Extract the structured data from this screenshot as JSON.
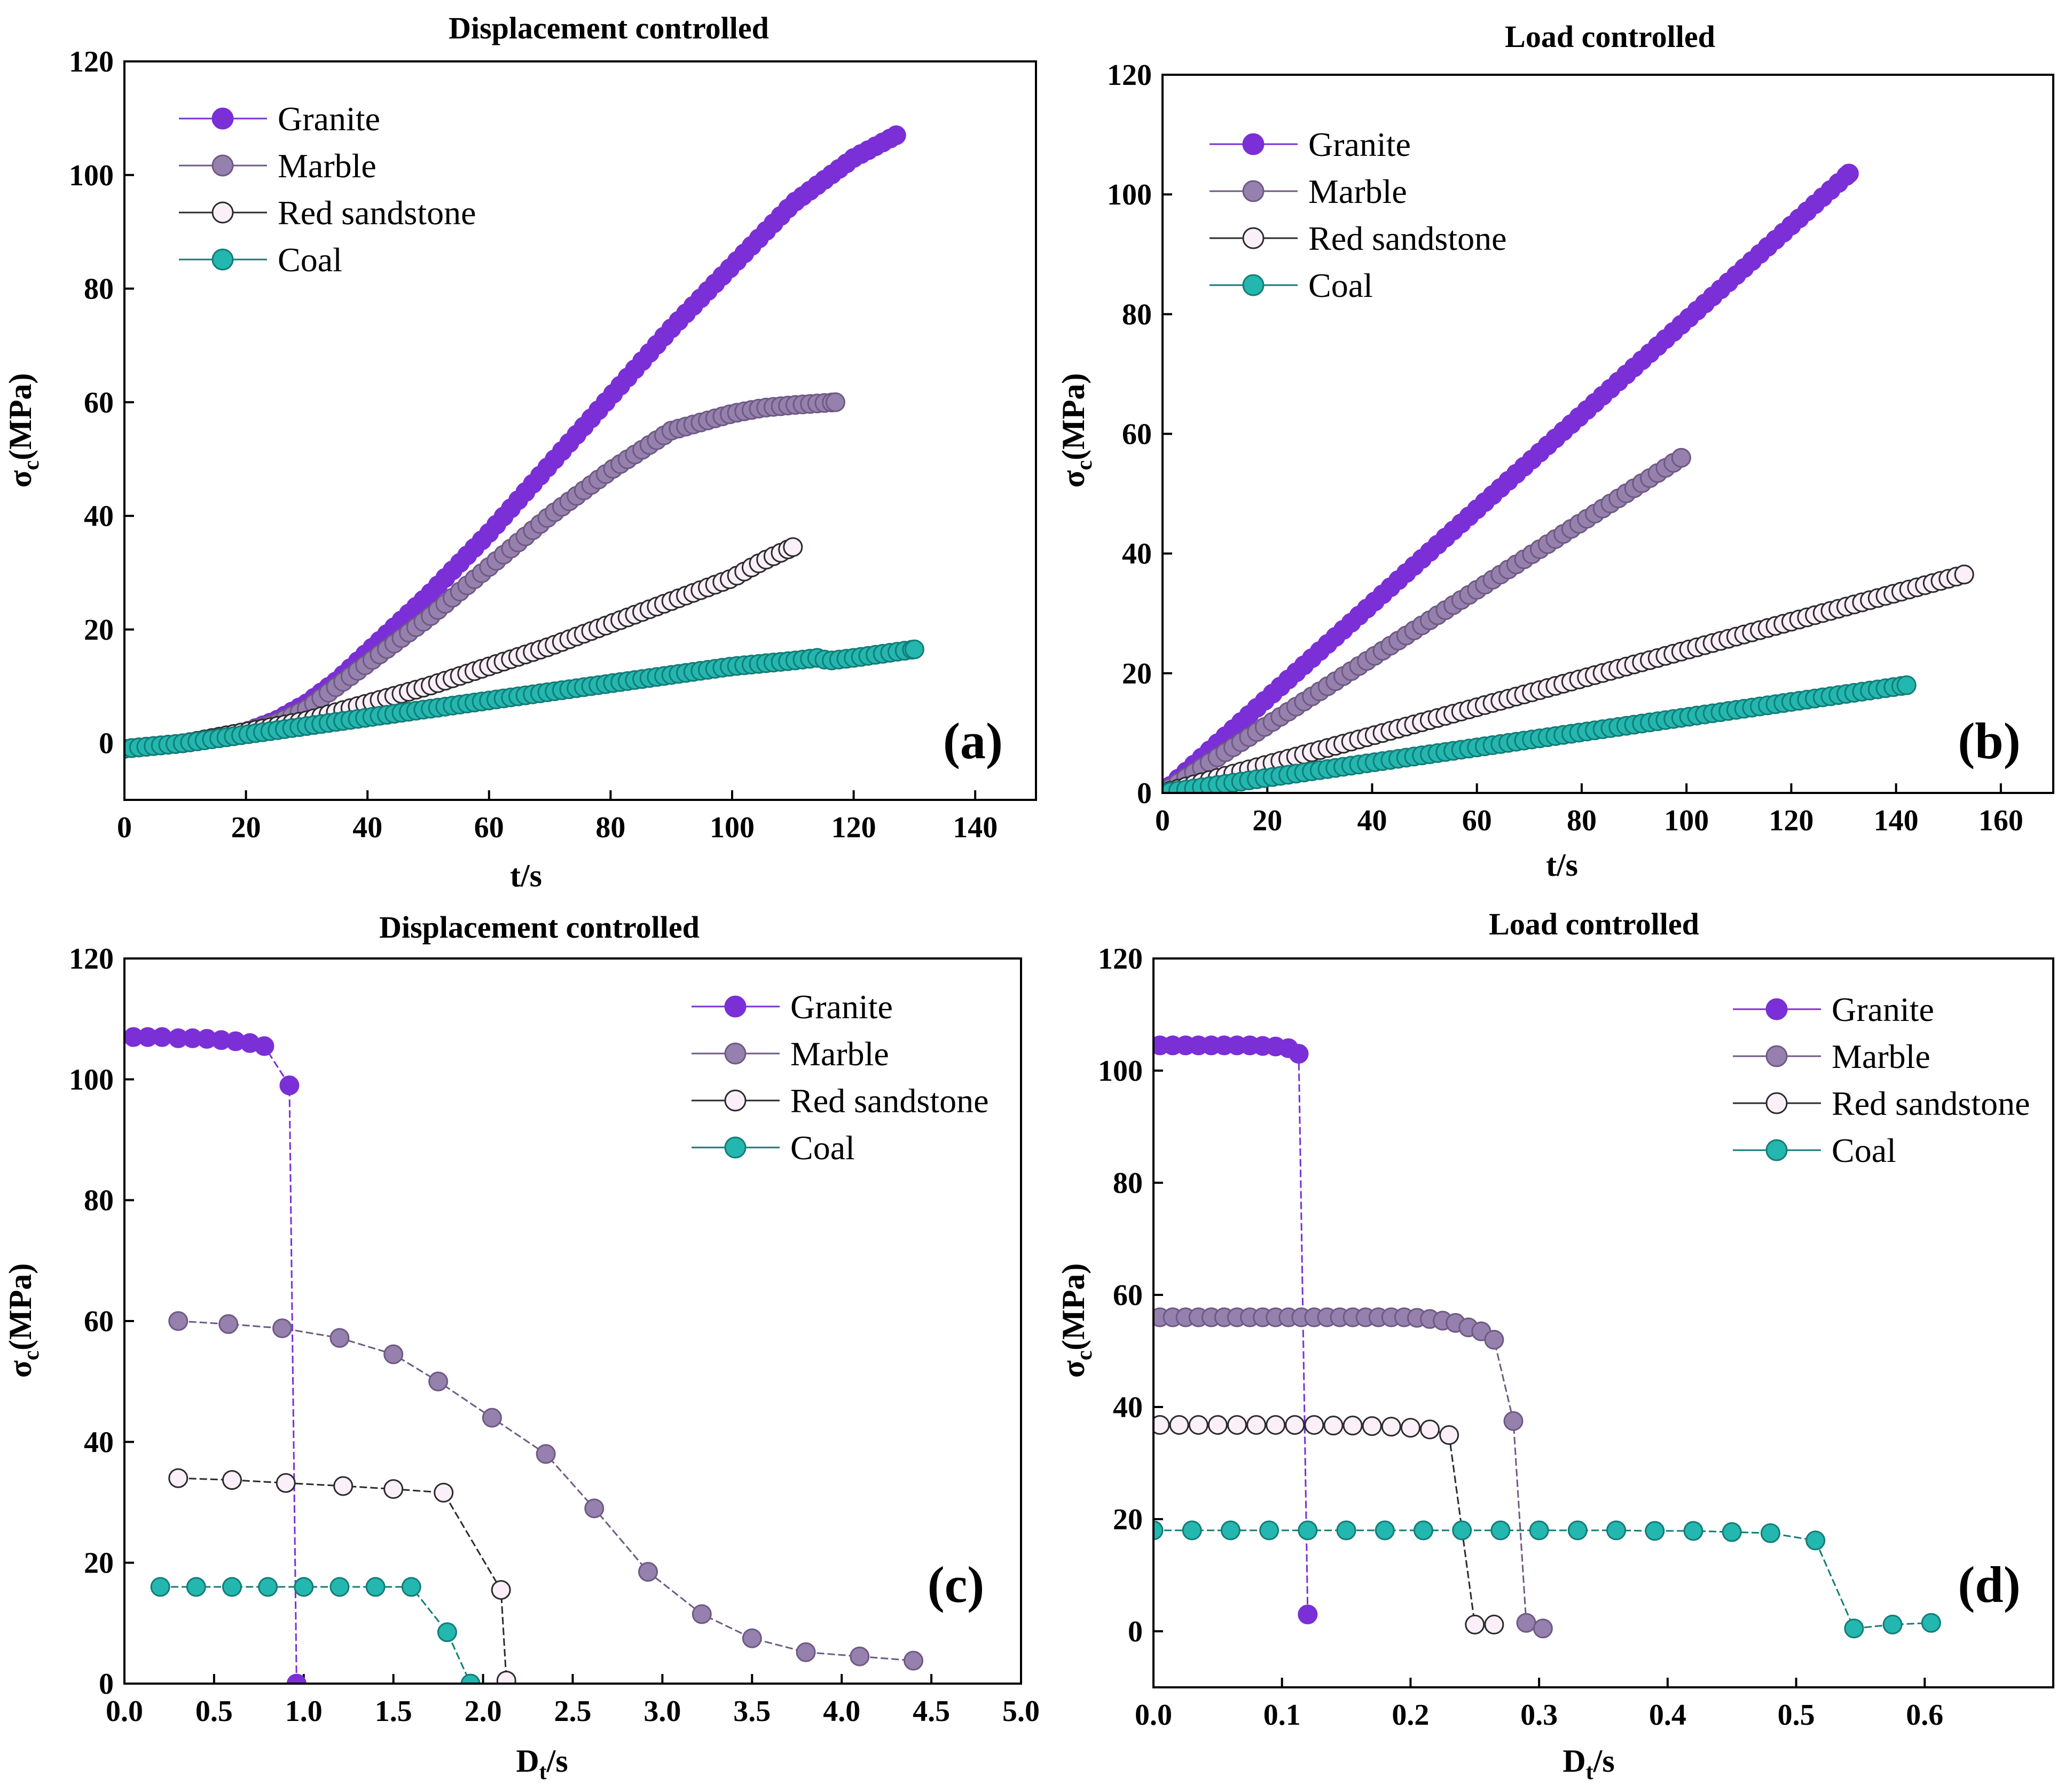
{
  "series_styles": {
    "Granite": {
      "color": "#7B2FD6",
      "fill": "#7B2FD6"
    },
    "Marble": {
      "color": "#6E5A84",
      "fill": "#9681AE"
    },
    "Red sandstone": {
      "color": "#2B2B2B",
      "fill": "#FBEFFA"
    },
    "Coal": {
      "color": "#137C77",
      "fill": "#23B7AF"
    }
  },
  "chart_data": [
    {
      "panel": "(a)",
      "type": "scatter",
      "title": "Displacement controlled",
      "xlabel": "t/s",
      "ylabel": "σc(MPa)",
      "xlim": [
        0,
        150
      ],
      "ylim": [
        -10,
        120
      ],
      "xticks": [
        0,
        20,
        40,
        60,
        80,
        100,
        120,
        140
      ],
      "yticks": [
        0,
        20,
        40,
        60,
        80,
        100,
        120
      ],
      "legend_position": "top-left",
      "legend": [
        "Granite",
        "Marble",
        "Red sandstone",
        "Coal"
      ],
      "series": [
        {
          "name": "Granite",
          "marker_step": 1.2,
          "x": [
            0,
            10,
            20,
            25,
            30,
            35,
            40,
            50,
            60,
            70,
            80,
            90,
            100,
            110,
            120,
            127
          ],
          "y": [
            -1,
            0,
            2,
            4,
            7,
            11,
            16,
            26,
            37,
            49,
            61,
            73,
            84,
            95,
            103,
            107
          ]
        },
        {
          "name": "Marble",
          "marker_step": 1.2,
          "x": [
            0,
            10,
            20,
            25,
            30,
            35,
            40,
            50,
            60,
            70,
            80,
            90,
            100,
            105,
            110,
            117
          ],
          "y": [
            -1,
            0,
            2,
            3.5,
            6,
            10,
            14,
            22,
            31,
            40,
            48,
            55,
            58,
            59,
            59.5,
            60
          ]
        },
        {
          "name": "Red sandstone",
          "marker_step": 1.2,
          "x": [
            0,
            10,
            20,
            30,
            40,
            50,
            60,
            70,
            80,
            90,
            100,
            105,
            110
          ],
          "y": [
            -1,
            0,
            2,
            4,
            7,
            10,
            13.5,
            17,
            21,
            25,
            29,
            32,
            34.5
          ]
        },
        {
          "name": "Coal",
          "marker_step": 1.2,
          "x": [
            0,
            10,
            20,
            30,
            40,
            50,
            60,
            70,
            80,
            90,
            100,
            110,
            114,
            116,
            120,
            130
          ],
          "y": [
            -1,
            0,
            1.5,
            3,
            4.5,
            6,
            7.5,
            9,
            10.5,
            12,
            13.5,
            14.5,
            15,
            14.5,
            15,
            16.5
          ]
        }
      ]
    },
    {
      "panel": "(b)",
      "type": "scatter",
      "title": "Load controlled",
      "xlabel": "t/s",
      "ylabel": "σc(MPa)",
      "xlim": [
        0,
        170
      ],
      "ylim": [
        0,
        120
      ],
      "xticks": [
        0,
        20,
        40,
        60,
        80,
        100,
        120,
        140,
        160
      ],
      "yticks": [
        0,
        20,
        40,
        60,
        80,
        100,
        120
      ],
      "legend_position": "top-left",
      "legend": [
        "Granite",
        "Marble",
        "Red sandstone",
        "Coal"
      ],
      "series": [
        {
          "name": "Granite",
          "marker_step": 1.5,
          "x": [
            0,
            131
          ],
          "y": [
            0,
            103.5
          ]
        },
        {
          "name": "Marble",
          "marker_step": 1.5,
          "x": [
            0,
            99
          ],
          "y": [
            0,
            56
          ]
        },
        {
          "name": "Red sandstone",
          "marker_step": 1.5,
          "x": [
            0,
            153
          ],
          "y": [
            0,
            36.5
          ]
        },
        {
          "name": "Coal",
          "marker_step": 1.5,
          "x": [
            0,
            142
          ],
          "y": [
            0,
            18
          ]
        }
      ]
    },
    {
      "panel": "(c)",
      "type": "scatter",
      "title": "Displacement controlled",
      "xlabel": "Dt/s",
      "ylabel": "σc(MPa)",
      "xlim": [
        0,
        5
      ],
      "ylim": [
        0,
        120
      ],
      "xticks": [
        "0.0",
        "0.5",
        "1.0",
        "1.5",
        "2.0",
        "2.5",
        "3.0",
        "3.5",
        "4.0",
        "4.5",
        "5.0"
      ],
      "yticks": [
        0,
        20,
        40,
        60,
        80,
        100,
        120
      ],
      "legend_position": "top-right",
      "legend": [
        "Granite",
        "Marble",
        "Red sandstone",
        "Coal"
      ],
      "series": [
        {
          "name": "Granite",
          "points": [
            [
              0.05,
              107
            ],
            [
              0.13,
              107
            ],
            [
              0.21,
              107
            ],
            [
              0.3,
              106.8
            ],
            [
              0.38,
              106.8
            ],
            [
              0.46,
              106.7
            ],
            [
              0.54,
              106.5
            ],
            [
              0.62,
              106.3
            ],
            [
              0.7,
              106
            ],
            [
              0.78,
              105.5
            ],
            [
              0.92,
              99
            ],
            [
              0.96,
              0
            ]
          ]
        },
        {
          "name": "Marble",
          "points": [
            [
              0.3,
              60
            ],
            [
              0.58,
              59.5
            ],
            [
              0.88,
              58.8
            ],
            [
              1.2,
              57.2
            ],
            [
              1.5,
              54.5
            ],
            [
              1.75,
              50
            ],
            [
              2.05,
              44
            ],
            [
              2.35,
              38
            ],
            [
              2.62,
              29
            ],
            [
              2.92,
              18.5
            ],
            [
              3.22,
              11.5
            ],
            [
              3.5,
              7.5
            ],
            [
              3.8,
              5.2
            ],
            [
              4.1,
              4.5
            ],
            [
              4.4,
              3.8
            ]
          ]
        },
        {
          "name": "Red sandstone",
          "points": [
            [
              0.3,
              34
            ],
            [
              0.6,
              33.7
            ],
            [
              0.9,
              33.2
            ],
            [
              1.22,
              32.7
            ],
            [
              1.5,
              32.2
            ],
            [
              1.78,
              31.6
            ],
            [
              2.1,
              15.5
            ],
            [
              2.13,
              0.5
            ]
          ]
        },
        {
          "name": "Coal",
          "points": [
            [
              0.2,
              16
            ],
            [
              0.4,
              16
            ],
            [
              0.6,
              16
            ],
            [
              0.8,
              16
            ],
            [
              1.0,
              16
            ],
            [
              1.2,
              16
            ],
            [
              1.4,
              16
            ],
            [
              1.6,
              16
            ],
            [
              1.8,
              8.5
            ],
            [
              1.93,
              0
            ]
          ]
        }
      ]
    },
    {
      "panel": "(d)",
      "type": "scatter",
      "title": "Load controlled",
      "xlabel": "Dt/s",
      "ylabel": "σc(MPa)",
      "xlim": [
        0,
        0.7
      ],
      "ylim": [
        -10,
        120
      ],
      "xticks": [
        "0.0",
        "0.1",
        "0.2",
        "0.3",
        "0.4",
        "0.5",
        "0.6"
      ],
      "yticks": [
        0,
        20,
        40,
        60,
        80,
        100,
        120
      ],
      "legend_position": "top-right",
      "legend": [
        "Granite",
        "Marble",
        "Red sandstone",
        "Coal"
      ],
      "series": [
        {
          "name": "Granite",
          "points": [
            [
              0.005,
              104.5
            ],
            [
              0.015,
              104.5
            ],
            [
              0.025,
              104.5
            ],
            [
              0.035,
              104.5
            ],
            [
              0.045,
              104.5
            ],
            [
              0.055,
              104.5
            ],
            [
              0.065,
              104.5
            ],
            [
              0.075,
              104.5
            ],
            [
              0.085,
              104.4
            ],
            [
              0.095,
              104.3
            ],
            [
              0.105,
              104
            ],
            [
              0.113,
              103
            ],
            [
              0.12,
              3
            ]
          ]
        },
        {
          "name": "Marble",
          "points": [
            [
              0.005,
              56
            ],
            [
              0.015,
              56
            ],
            [
              0.025,
              56
            ],
            [
              0.035,
              56
            ],
            [
              0.045,
              56
            ],
            [
              0.055,
              56
            ],
            [
              0.065,
              56
            ],
            [
              0.075,
              56
            ],
            [
              0.085,
              56
            ],
            [
              0.095,
              56
            ],
            [
              0.105,
              56
            ],
            [
              0.115,
              56
            ],
            [
              0.125,
              56
            ],
            [
              0.135,
              56
            ],
            [
              0.145,
              56
            ],
            [
              0.155,
              56
            ],
            [
              0.165,
              56
            ],
            [
              0.175,
              56
            ],
            [
              0.185,
              56
            ],
            [
              0.195,
              56
            ],
            [
              0.205,
              55.9
            ],
            [
              0.215,
              55.7
            ],
            [
              0.225,
              55.4
            ],
            [
              0.235,
              55
            ],
            [
              0.245,
              54.2
            ],
            [
              0.255,
              53.5
            ],
            [
              0.265,
              52
            ],
            [
              0.28,
              37.5
            ],
            [
              0.29,
              1.5
            ],
            [
              0.303,
              0.5
            ]
          ]
        },
        {
          "name": "Red sandstone",
          "points": [
            [
              0.005,
              36.8
            ],
            [
              0.02,
              36.8
            ],
            [
              0.035,
              36.8
            ],
            [
              0.05,
              36.8
            ],
            [
              0.065,
              36.8
            ],
            [
              0.08,
              36.8
            ],
            [
              0.095,
              36.8
            ],
            [
              0.11,
              36.8
            ],
            [
              0.125,
              36.8
            ],
            [
              0.14,
              36.7
            ],
            [
              0.155,
              36.7
            ],
            [
              0.17,
              36.6
            ],
            [
              0.185,
              36.5
            ],
            [
              0.2,
              36.3
            ],
            [
              0.215,
              36
            ],
            [
              0.23,
              35
            ],
            [
              0.25,
              1.2
            ],
            [
              0.265,
              1.2
            ]
          ]
        },
        {
          "name": "Coal",
          "points": [
            [
              0,
              18
            ],
            [
              0.03,
              18
            ],
            [
              0.06,
              18
            ],
            [
              0.09,
              18
            ],
            [
              0.12,
              18
            ],
            [
              0.15,
              18
            ],
            [
              0.18,
              18
            ],
            [
              0.21,
              18
            ],
            [
              0.24,
              18
            ],
            [
              0.27,
              18
            ],
            [
              0.3,
              18
            ],
            [
              0.33,
              18
            ],
            [
              0.36,
              18
            ],
            [
              0.39,
              17.9
            ],
            [
              0.42,
              17.9
            ],
            [
              0.45,
              17.7
            ],
            [
              0.48,
              17.5
            ],
            [
              0.515,
              16.2
            ],
            [
              0.545,
              0.5
            ],
            [
              0.575,
              1.2
            ],
            [
              0.605,
              1.5
            ]
          ]
        }
      ]
    }
  ]
}
